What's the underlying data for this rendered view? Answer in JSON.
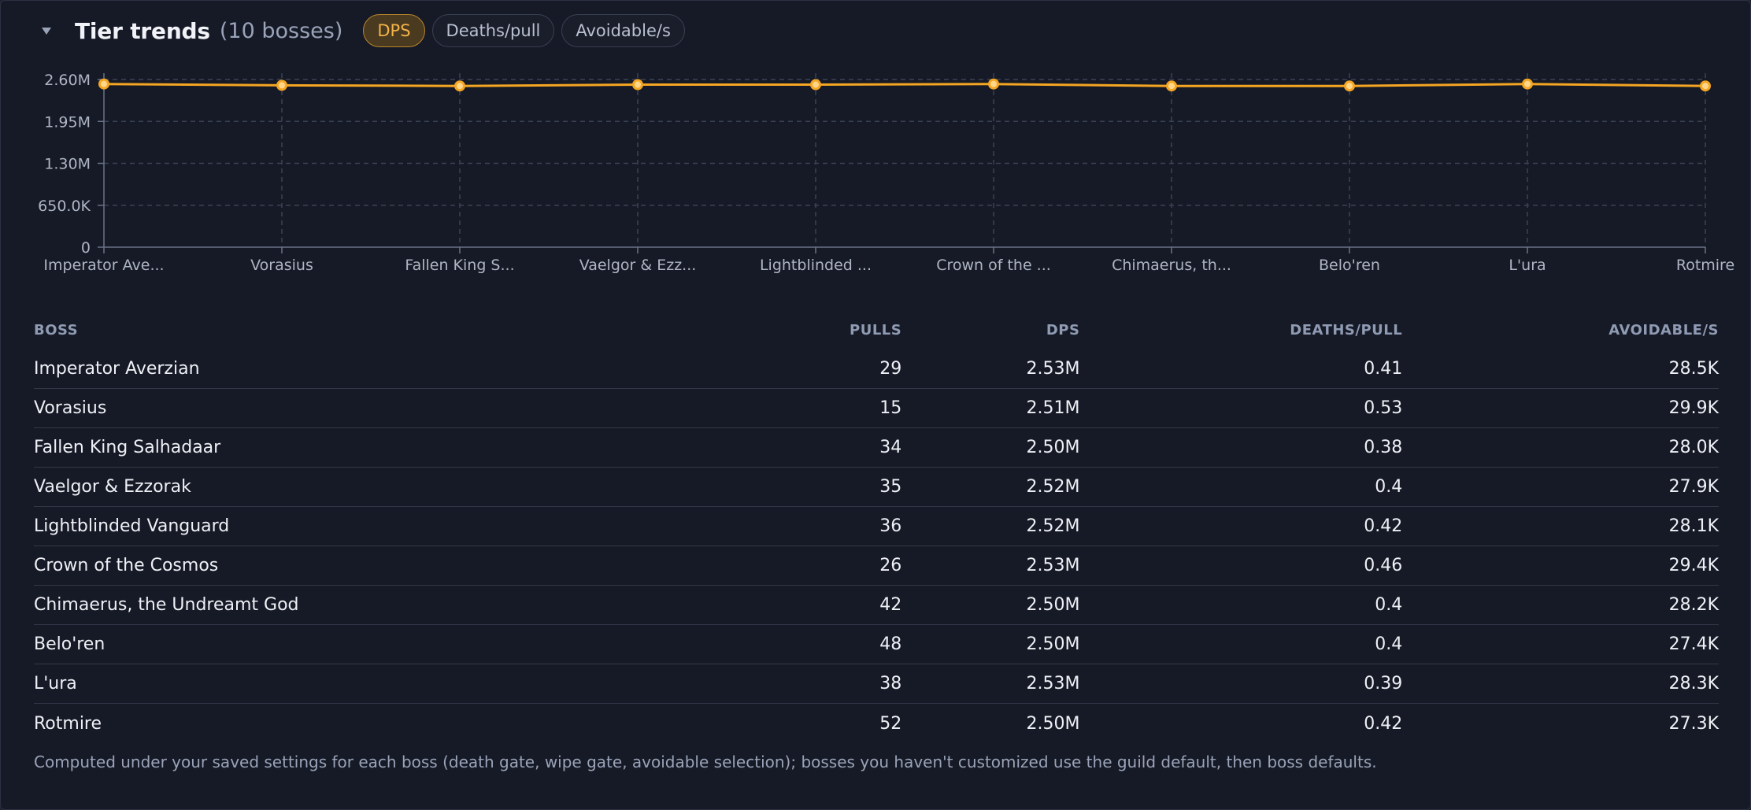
{
  "header": {
    "title": "Tier trends",
    "count": "(10 bosses)",
    "tabs": [
      {
        "label": "DPS",
        "active": true
      },
      {
        "label": "Deaths/pull",
        "active": false
      },
      {
        "label": "Avoidable/s",
        "active": false
      }
    ]
  },
  "chart_data": {
    "type": "line",
    "categories": [
      "Imperator Ave...",
      "Vorasius",
      "Fallen King S...",
      "Vaelgor & Ezz...",
      "Lightblinded ...",
      "Crown of the ...",
      "Chimaerus, th...",
      "Belo'ren",
      "L'ura",
      "Rotmire"
    ],
    "series": [
      {
        "values": [
          2530000,
          2510000,
          2500000,
          2520000,
          2520000,
          2530000,
          2500000,
          2500000,
          2530000,
          2500000
        ]
      }
    ],
    "yticks": [
      0,
      650000,
      1300000,
      1950000,
      2600000
    ],
    "ytick_labels": [
      "0",
      "650.0K",
      "1.30M",
      "1.95M",
      "2.60M"
    ],
    "ylim": [
      0,
      2600000
    ],
    "grid": true,
    "line_color": "#f5a623"
  },
  "table": {
    "headers": {
      "boss": "BOSS",
      "pulls": "PULLS",
      "dps": "DPS",
      "deaths": "DEATHS/PULL",
      "avoidable": "AVOIDABLE/S"
    },
    "rows": [
      {
        "boss": "Imperator Averzian",
        "pulls": "29",
        "dps": "2.53M",
        "deaths": "0.41",
        "avoidable": "28.5K"
      },
      {
        "boss": "Vorasius",
        "pulls": "15",
        "dps": "2.51M",
        "deaths": "0.53",
        "avoidable": "29.9K"
      },
      {
        "boss": "Fallen King Salhadaar",
        "pulls": "34",
        "dps": "2.50M",
        "deaths": "0.38",
        "avoidable": "28.0K"
      },
      {
        "boss": "Vaelgor & Ezzorak",
        "pulls": "35",
        "dps": "2.52M",
        "deaths": "0.4",
        "avoidable": "27.9K"
      },
      {
        "boss": "Lightblinded Vanguard",
        "pulls": "36",
        "dps": "2.52M",
        "deaths": "0.42",
        "avoidable": "28.1K"
      },
      {
        "boss": "Crown of the Cosmos",
        "pulls": "26",
        "dps": "2.53M",
        "deaths": "0.46",
        "avoidable": "29.4K"
      },
      {
        "boss": "Chimaerus, the Undreamt God",
        "pulls": "42",
        "dps": "2.50M",
        "deaths": "0.4",
        "avoidable": "28.2K"
      },
      {
        "boss": "Belo'ren",
        "pulls": "48",
        "dps": "2.50M",
        "deaths": "0.4",
        "avoidable": "27.4K"
      },
      {
        "boss": "L'ura",
        "pulls": "38",
        "dps": "2.53M",
        "deaths": "0.39",
        "avoidable": "28.3K"
      },
      {
        "boss": "Rotmire",
        "pulls": "52",
        "dps": "2.50M",
        "deaths": "0.42",
        "avoidable": "27.3K"
      }
    ]
  },
  "footnote": "Computed under your saved settings for each boss (death gate, wipe gate, avoidable selection); bosses you haven't customized use the guild default, then boss defaults."
}
